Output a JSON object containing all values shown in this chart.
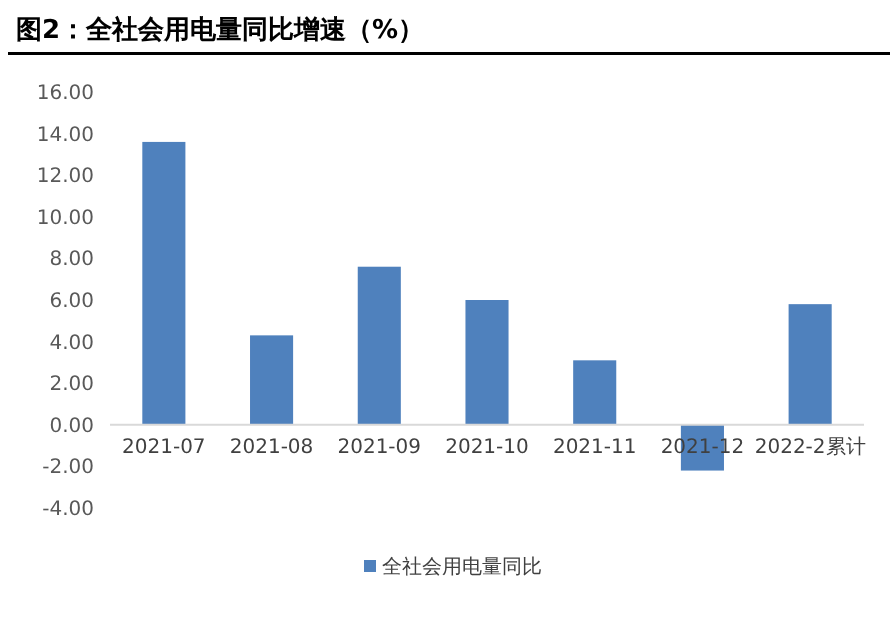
{
  "chart_data": {
    "type": "bar",
    "title": "图2：全社会用电量同比增速（%）",
    "categories": [
      "2021-07",
      "2021-08",
      "2021-09",
      "2021-10",
      "2021-11",
      "2021-12",
      "2022-2累计"
    ],
    "series": [
      {
        "name": "全社会用电量同比",
        "color": "#4f81bd",
        "values": [
          13.6,
          4.3,
          7.6,
          6.0,
          3.1,
          -2.2,
          5.8
        ]
      }
    ],
    "ylim": [
      -4,
      16
    ],
    "yticks": [
      {
        "value": -4,
        "label": "-4.00"
      },
      {
        "value": -2,
        "label": "-2.00"
      },
      {
        "value": 0,
        "label": "0.00"
      },
      {
        "value": 2,
        "label": "2.00"
      },
      {
        "value": 4,
        "label": "4.00"
      },
      {
        "value": 6,
        "label": "6.00"
      },
      {
        "value": 8,
        "label": "8.00"
      },
      {
        "value": 10,
        "label": "10.00"
      },
      {
        "value": 12,
        "label": "12.00"
      },
      {
        "value": 14,
        "label": "14.00"
      },
      {
        "value": 16,
        "label": "16.00"
      }
    ],
    "legend": "bottom"
  }
}
